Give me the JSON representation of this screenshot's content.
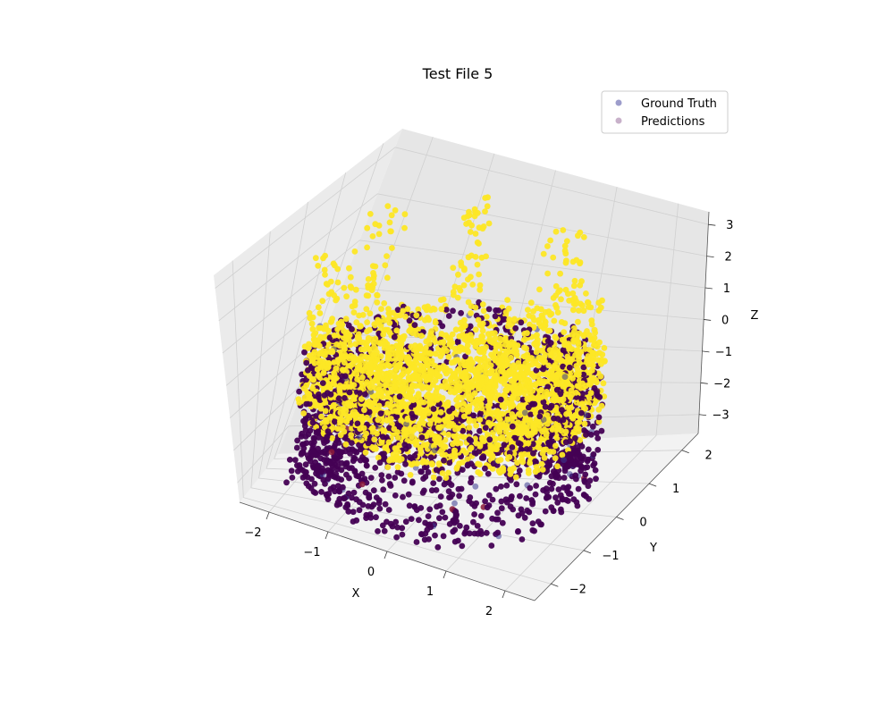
{
  "chart_data": {
    "type": "scatter",
    "projection": "3d",
    "title": "Test File 5",
    "xlabel": "X",
    "ylabel": "Y",
    "zlabel": "Z",
    "xlim": [
      -2.5,
      2.5
    ],
    "ylim": [
      -2.5,
      2.5
    ],
    "zlim": [
      -3.6,
      3.4
    ],
    "x_ticks": [
      -2,
      -1,
      0,
      1,
      2
    ],
    "y_ticks": [
      -2,
      -1,
      0,
      1,
      2
    ],
    "z_ticks": [
      -3,
      -2,
      -1,
      0,
      1,
      2,
      3
    ],
    "x_tick_labels": [
      "−2",
      "−1",
      "0",
      "1",
      "2"
    ],
    "y_tick_labels": [
      "−2",
      "−1",
      "0",
      "1",
      "2"
    ],
    "z_tick_labels": [
      "−3",
      "−2",
      "−1",
      "0",
      "1",
      "2",
      "3"
    ],
    "grid": true,
    "legend_position": "top-right",
    "series": [
      {
        "name": "Ground Truth",
        "marker_color": "#5b5ba8",
        "alpha": 0.6,
        "colormap": "viridis",
        "description_of_shape": "dense point cloud forming a ring/cylinder shell around the origin",
        "radius_range": [
          1.5,
          2.1
        ],
        "z_range_main": [
          -3.4,
          0.4
        ],
        "color_low": "#440154",
        "color_high": "#fde725"
      },
      {
        "name": "Predictions",
        "marker_color": "#a47da6",
        "alpha": 0.6,
        "colormap": "viridis",
        "radius_range": [
          1.5,
          2.1
        ],
        "z_range_main": [
          -1.6,
          3.0
        ],
        "color_low": "#440154",
        "color_high": "#fde725"
      }
    ],
    "accent_outlier_color": "#8b1a3a",
    "pane_color": "#f2f2f2",
    "grid_color": "#d0d0d0"
  }
}
